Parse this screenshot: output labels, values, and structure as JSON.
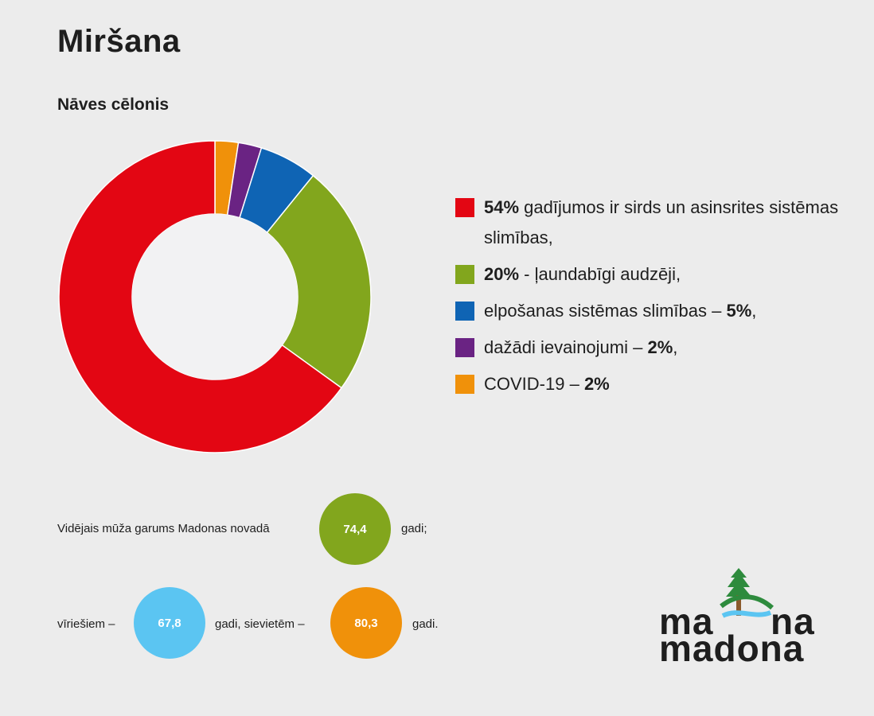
{
  "page": {
    "title": "Miršana",
    "subtitle": "Nāves cēlonis"
  },
  "chart_data": {
    "type": "pie",
    "variant": "donut",
    "title": "Nāves cēlonis",
    "slices": [
      {
        "label": "sirds un asinsrites sistēmas slimības",
        "value": 54,
        "color": "#e30613"
      },
      {
        "label": "ļaundabīgi audzēji",
        "value": 20,
        "color": "#82a61d"
      },
      {
        "label": "elpošanas sistēmas slimības",
        "value": 5,
        "color": "#0f64b4"
      },
      {
        "label": "dažādi ievainojumi",
        "value": 2,
        "color": "#6a2383"
      },
      {
        "label": "COVID-19",
        "value": 2,
        "color": "#f0910a"
      }
    ]
  },
  "legend": [
    {
      "bold": "54%",
      "text": " gadījumos ir sirds un asinsrites sistēmas slimības,",
      "suffix": "",
      "color": "#e30613"
    },
    {
      "bold": "20%",
      "text": " - ļaundabīgi audzēji,",
      "suffix": "",
      "color": "#82a61d"
    },
    {
      "pre": "elpošanas sistēmas slimības – ",
      "bold": "5%",
      "suffix": ",",
      "color": "#0f64b4"
    },
    {
      "pre": "dažādi ievainojumi – ",
      "bold": "2%",
      "suffix": ",",
      "color": "#6a2383"
    },
    {
      "pre": "COVID-19 – ",
      "bold": "2%",
      "suffix": "",
      "color": "#f0910a"
    }
  ],
  "life_expectancy": {
    "label_total": "Vidējais mūža garums Madonas novadā",
    "total": "74,4",
    "unit_total": "gadi;",
    "label_men": "vīriešiem –",
    "men": "67,8",
    "label_mid": "gadi, sievietēm –",
    "women": "80,3",
    "unit_women": "gadi.",
    "colors": {
      "total": "#82a61d",
      "men": "#5bc5f2",
      "women": "#f0910a"
    }
  },
  "logo": {
    "line1a": "ma",
    "line1b": "na",
    "line2": "madona"
  }
}
